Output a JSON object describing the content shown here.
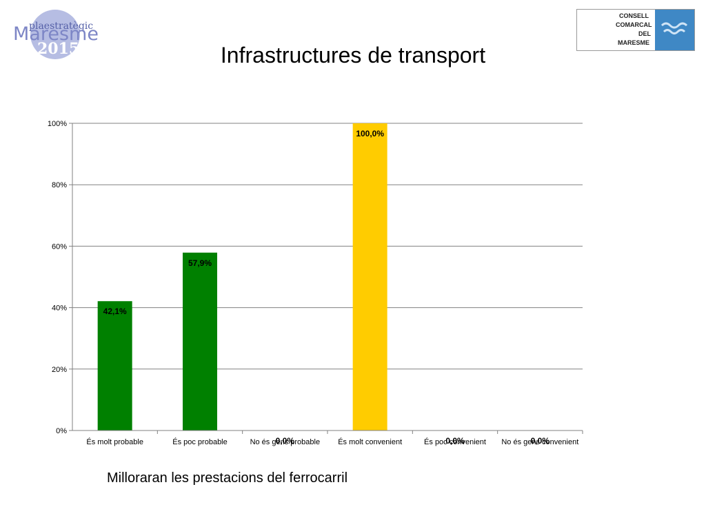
{
  "header": {
    "title": "Infrastructures de transport",
    "logo_left": {
      "small_text": "plaestratègic",
      "big_text": "Maresme",
      "year": "2015",
      "color": "#8c96cf"
    },
    "logo_right": {
      "lines": [
        "CONSELL",
        "COMARCAL",
        "DEL",
        "MARESME"
      ],
      "accent_color": "#3f88c5"
    }
  },
  "caption": "Milloraran les prestacions del ferrocarril",
  "chart_data": {
    "type": "bar",
    "categories": [
      "És molt probable",
      "És poc probable",
      "No és gens probable",
      "És molt convenient",
      "És poc convenient",
      "No és gens convenient"
    ],
    "values": [
      42.1,
      57.9,
      0.0,
      100.0,
      0.0,
      0.0
    ],
    "value_labels": [
      "42,1%",
      "57,9%",
      "0,0%",
      "100,0%",
      "0,0%",
      "0,0%"
    ],
    "colors": [
      "#008000",
      "#008000",
      "#008000",
      "#ffcc00",
      "#ffcc00",
      "#ffcc00"
    ],
    "y_ticks": [
      "0%",
      "20%",
      "40%",
      "60%",
      "80%",
      "100%"
    ],
    "ylim": [
      0,
      100
    ],
    "grid": true,
    "legend": false
  }
}
